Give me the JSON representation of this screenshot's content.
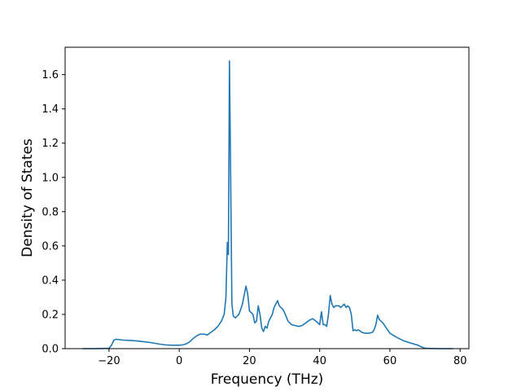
{
  "chart_data": {
    "type": "line",
    "title": "",
    "xlabel": "Frequency (THz)",
    "ylabel": "Density of States",
    "xlim": [
      -32.5,
      82.5
    ],
    "ylim": [
      0,
      1.76
    ],
    "xticks": [
      -20,
      0,
      20,
      40,
      60,
      80
    ],
    "yticks": [
      0.0,
      0.2,
      0.4,
      0.6,
      0.8,
      1.0,
      1.2,
      1.4,
      1.6
    ],
    "grid": false,
    "legend": "none",
    "series": [
      {
        "color": "#1f77b4",
        "x": [
          -27.5,
          -24,
          -20,
          -19.3,
          -18.6,
          -18,
          -16,
          -14,
          -12,
          -10,
          -8,
          -6,
          -4,
          -2,
          0,
          1,
          2,
          3,
          4,
          5,
          6,
          7,
          8,
          9,
          10,
          11,
          12,
          12.8,
          13.3,
          13.7,
          14.0,
          14.3,
          14.6,
          15.0,
          15.4,
          16,
          17,
          18,
          19,
          19.5,
          20,
          20.5,
          21,
          21.5,
          22,
          22.5,
          23,
          23.5,
          24,
          24.5,
          25,
          25.5,
          26,
          26.5,
          27,
          28,
          28.5,
          29,
          29.5,
          30,
          31,
          32,
          33,
          34,
          35,
          36,
          37,
          38,
          39,
          40,
          40.5,
          41,
          41.5,
          42,
          42.5,
          43,
          43.5,
          44,
          44.5,
          45,
          45.5,
          46,
          47,
          47.5,
          48,
          48.5,
          49,
          49.5,
          50,
          50.5,
          51,
          52,
          53,
          54,
          55,
          55.5,
          56,
          56.5,
          57,
          58,
          59,
          60,
          62,
          64,
          66,
          68,
          69,
          70,
          74,
          78
        ],
        "y": [
          0,
          0,
          0.002,
          0.02,
          0.05,
          0.055,
          0.05,
          0.048,
          0.045,
          0.04,
          0.035,
          0.028,
          0.022,
          0.02,
          0.02,
          0.022,
          0.028,
          0.04,
          0.06,
          0.075,
          0.085,
          0.085,
          0.08,
          0.095,
          0.11,
          0.13,
          0.16,
          0.2,
          0.3,
          0.62,
          0.55,
          1.68,
          1.1,
          0.26,
          0.19,
          0.18,
          0.2,
          0.26,
          0.365,
          0.32,
          0.22,
          0.21,
          0.2,
          0.15,
          0.16,
          0.25,
          0.2,
          0.12,
          0.1,
          0.13,
          0.12,
          0.16,
          0.18,
          0.2,
          0.24,
          0.28,
          0.25,
          0.24,
          0.23,
          0.21,
          0.16,
          0.14,
          0.135,
          0.13,
          0.135,
          0.15,
          0.165,
          0.175,
          0.16,
          0.14,
          0.215,
          0.14,
          0.14,
          0.13,
          0.2,
          0.31,
          0.26,
          0.24,
          0.25,
          0.25,
          0.25,
          0.24,
          0.26,
          0.24,
          0.25,
          0.24,
          0.2,
          0.105,
          0.11,
          0.105,
          0.11,
          0.095,
          0.09,
          0.09,
          0.095,
          0.11,
          0.14,
          0.195,
          0.17,
          0.15,
          0.12,
          0.09,
          0.065,
          0.045,
          0.032,
          0.02,
          0.01,
          0.002,
          0,
          0
        ]
      }
    ]
  }
}
